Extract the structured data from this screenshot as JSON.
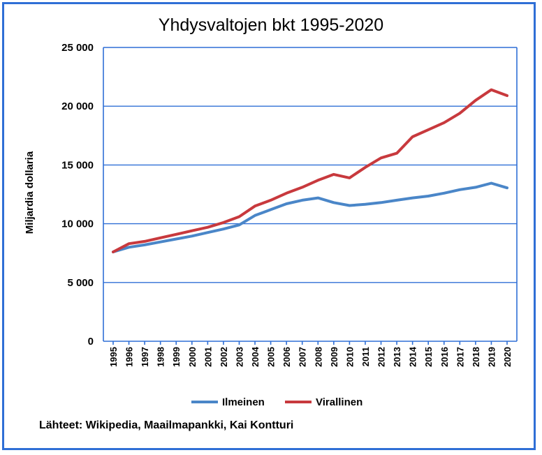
{
  "chart_data": {
    "type": "line",
    "title": "Yhdysvaltojen bkt 1995-2020",
    "xlabel": "",
    "ylabel": "Miljardia dollaria",
    "ylim": [
      0,
      25000
    ],
    "yticks": [
      0,
      5000,
      10000,
      15000,
      20000,
      25000
    ],
    "ytick_labels": [
      "0",
      "5 000",
      "10 000",
      "15 000",
      "20 000",
      "25 000"
    ],
    "grid": true,
    "legend_position": "bottom",
    "x": [
      "1995",
      "1996",
      "1997",
      "1998",
      "1999",
      "2000",
      "2001",
      "2002",
      "2003",
      "2004",
      "2005",
      "2006",
      "2007",
      "2008",
      "2009",
      "2010",
      "2011",
      "2012",
      "2013",
      "2014",
      "2015",
      "2016",
      "2017",
      "2018",
      "2019",
      "2020"
    ],
    "series": [
      {
        "name": "Ilmeinen",
        "color": "#4a86c8",
        "values": [
          7600,
          8000,
          8200,
          8450,
          8700,
          8950,
          9250,
          9550,
          9900,
          10700,
          11200,
          11700,
          12000,
          12200,
          11800,
          11550,
          11650,
          11800,
          12000,
          12200,
          12350,
          12600,
          12900,
          13100,
          13450,
          13050
        ]
      },
      {
        "name": "Virallinen",
        "color": "#c8393d",
        "values": [
          7600,
          8300,
          8500,
          8800,
          9100,
          9400,
          9700,
          10100,
          10600,
          11500,
          12000,
          12600,
          13100,
          13700,
          14200,
          13900,
          14800,
          15600,
          16000,
          17400,
          18000,
          18600,
          19400,
          20500,
          21400,
          20900
        ]
      }
    ]
  },
  "source_text": "Lähteet: Wikipedia, Maailmapankki, Kai Kontturi"
}
